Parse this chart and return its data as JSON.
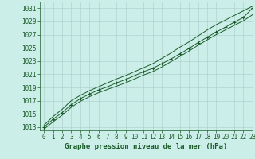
{
  "title": "Graphe pression niveau de la mer (hPa)",
  "bg_color": "#cceee8",
  "grid_color": "#aacccc",
  "line_color": "#1a5c2a",
  "xlim": [
    -0.5,
    23
  ],
  "ylim": [
    1012.5,
    1032
  ],
  "yticks": [
    1013,
    1015,
    1017,
    1019,
    1021,
    1023,
    1025,
    1027,
    1029,
    1031
  ],
  "xticks": [
    0,
    1,
    2,
    3,
    4,
    5,
    6,
    7,
    8,
    9,
    10,
    11,
    12,
    13,
    14,
    15,
    16,
    17,
    18,
    19,
    20,
    21,
    22,
    23
  ],
  "x": [
    0,
    1,
    2,
    3,
    4,
    5,
    6,
    7,
    8,
    9,
    10,
    11,
    12,
    13,
    14,
    15,
    16,
    17,
    18,
    19,
    20,
    21,
    22,
    23
  ],
  "y_main": [
    1013.0,
    1014.2,
    1015.2,
    1016.4,
    1017.3,
    1018.0,
    1018.6,
    1019.1,
    1019.7,
    1020.2,
    1020.8,
    1021.4,
    1021.9,
    1022.6,
    1023.3,
    1024.1,
    1024.9,
    1025.8,
    1026.6,
    1027.4,
    1028.1,
    1028.9,
    1029.6,
    1031.0
  ],
  "y_upper": [
    1013.3,
    1014.6,
    1015.7,
    1017.0,
    1017.8,
    1018.5,
    1019.1,
    1019.7,
    1020.3,
    1020.8,
    1021.4,
    1022.0,
    1022.6,
    1023.4,
    1024.2,
    1025.1,
    1025.9,
    1026.8,
    1027.7,
    1028.5,
    1029.2,
    1029.9,
    1030.6,
    1031.3
  ],
  "y_lower": [
    1012.7,
    1013.8,
    1014.8,
    1016.0,
    1016.9,
    1017.6,
    1018.2,
    1018.7,
    1019.2,
    1019.7,
    1020.3,
    1020.9,
    1021.4,
    1022.1,
    1022.9,
    1023.7,
    1024.5,
    1025.4,
    1026.2,
    1027.0,
    1027.7,
    1028.4,
    1029.1,
    1030.0
  ],
  "tick_fontsize": 5.5,
  "label_fontsize": 6.5
}
